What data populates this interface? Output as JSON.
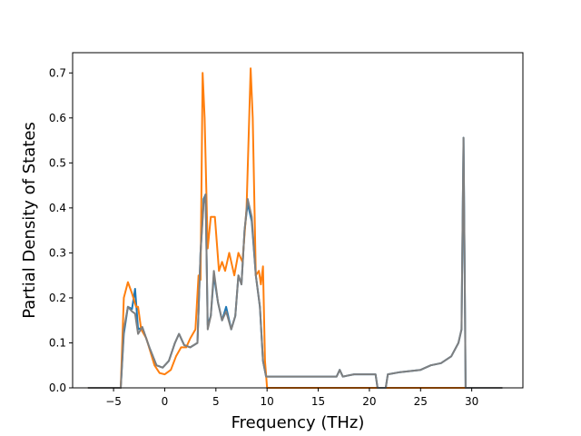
{
  "chart_data": {
    "type": "line",
    "title": "",
    "xlabel": "Frequency (THz)",
    "ylabel": "Partial Density of States",
    "xlim": [
      -9,
      35
    ],
    "ylim": [
      0,
      0.745
    ],
    "xticks": [
      -5,
      0,
      5,
      10,
      15,
      20,
      25,
      30
    ],
    "xtick_labels": [
      "−5",
      "0",
      "5",
      "10",
      "15",
      "20",
      "25",
      "30"
    ],
    "yticks": [
      0.0,
      0.1,
      0.2,
      0.3,
      0.4,
      0.5,
      0.6,
      0.7
    ],
    "ytick_labels": [
      "0.0",
      "0.1",
      "0.2",
      "0.3",
      "0.4",
      "0.5",
      "0.6",
      "0.7"
    ],
    "grid": false,
    "legend": false,
    "series": [
      {
        "color": "#1f77b4",
        "points": [
          [
            -7.5,
            0
          ],
          [
            -4.3,
            0
          ],
          [
            -4.0,
            0.12
          ],
          [
            -3.6,
            0.18
          ],
          [
            -3.2,
            0.175
          ],
          [
            -2.9,
            0.22
          ],
          [
            -2.6,
            0.13
          ],
          [
            -2.2,
            0.135
          ],
          [
            -1.5,
            0.09
          ],
          [
            -0.8,
            0.05
          ],
          [
            -0.2,
            0.045
          ],
          [
            0.4,
            0.06
          ],
          [
            1.0,
            0.1
          ],
          [
            1.4,
            0.12
          ],
          [
            1.9,
            0.095
          ],
          [
            2.5,
            0.09
          ],
          [
            3.2,
            0.1
          ],
          [
            3.5,
            0.3
          ],
          [
            3.8,
            0.42
          ],
          [
            4.0,
            0.43
          ],
          [
            4.2,
            0.14
          ],
          [
            4.5,
            0.16
          ],
          [
            4.8,
            0.25
          ],
          [
            5.2,
            0.19
          ],
          [
            5.6,
            0.15
          ],
          [
            6.0,
            0.18
          ],
          [
            6.5,
            0.13
          ],
          [
            6.9,
            0.16
          ],
          [
            7.2,
            0.25
          ],
          [
            7.5,
            0.23
          ],
          [
            7.8,
            0.35
          ],
          [
            8.1,
            0.41
          ],
          [
            8.5,
            0.37
          ],
          [
            8.9,
            0.25
          ],
          [
            9.3,
            0.18
          ],
          [
            9.6,
            0.06
          ],
          [
            9.9,
            0.025
          ],
          [
            16.8,
            0.025
          ],
          [
            17.1,
            0.04
          ],
          [
            17.4,
            0.025
          ],
          [
            18.5,
            0.03
          ],
          [
            20.6,
            0.03
          ],
          [
            20.8,
            0.0
          ],
          [
            21.6,
            0.0
          ],
          [
            21.8,
            0.03
          ],
          [
            23.0,
            0.035
          ],
          [
            25.0,
            0.04
          ],
          [
            26.0,
            0.05
          ],
          [
            27.0,
            0.055
          ],
          [
            28.0,
            0.07
          ],
          [
            28.7,
            0.1
          ],
          [
            29.0,
            0.13
          ],
          [
            29.1,
            0.35
          ],
          [
            29.2,
            0.556
          ],
          [
            29.3,
            0.3
          ],
          [
            29.4,
            0.0
          ],
          [
            33.0,
            0.0
          ]
        ]
      },
      {
        "color": "#ff7f0e",
        "points": [
          [
            -7.5,
            0
          ],
          [
            -4.3,
            0
          ],
          [
            -4.0,
            0.2
          ],
          [
            -3.6,
            0.235
          ],
          [
            -3.2,
            0.21
          ],
          [
            -2.8,
            0.18
          ],
          [
            -2.6,
            0.18
          ],
          [
            -2.3,
            0.13
          ],
          [
            -1.8,
            0.11
          ],
          [
            -1.0,
            0.05
          ],
          [
            -0.5,
            0.033
          ],
          [
            0,
            0.03
          ],
          [
            0.6,
            0.04
          ],
          [
            1.1,
            0.07
          ],
          [
            1.6,
            0.09
          ],
          [
            2.1,
            0.09
          ],
          [
            2.5,
            0.11
          ],
          [
            3.0,
            0.13
          ],
          [
            3.3,
            0.25
          ],
          [
            3.5,
            0.24
          ],
          [
            3.7,
            0.7
          ],
          [
            3.9,
            0.6
          ],
          [
            4.2,
            0.31
          ],
          [
            4.5,
            0.38
          ],
          [
            4.9,
            0.38
          ],
          [
            5.3,
            0.26
          ],
          [
            5.6,
            0.28
          ],
          [
            5.9,
            0.26
          ],
          [
            6.3,
            0.3
          ],
          [
            6.8,
            0.25
          ],
          [
            7.2,
            0.3
          ],
          [
            7.6,
            0.28
          ],
          [
            8.0,
            0.4
          ],
          [
            8.4,
            0.71
          ],
          [
            8.6,
            0.6
          ],
          [
            8.9,
            0.25
          ],
          [
            9.2,
            0.26
          ],
          [
            9.4,
            0.23
          ],
          [
            9.6,
            0.27
          ],
          [
            9.8,
            0.06
          ],
          [
            10.0,
            0.0
          ],
          [
            33.0,
            0.0
          ]
        ]
      },
      {
        "color": "#7f7f7f",
        "points": [
          [
            -7.5,
            0
          ],
          [
            -4.3,
            0
          ],
          [
            -4.0,
            0.13
          ],
          [
            -3.6,
            0.18
          ],
          [
            -3.2,
            0.17
          ],
          [
            -2.9,
            0.165
          ],
          [
            -2.6,
            0.12
          ],
          [
            -2.2,
            0.135
          ],
          [
            -1.5,
            0.09
          ],
          [
            -0.8,
            0.05
          ],
          [
            -0.2,
            0.045
          ],
          [
            0.4,
            0.06
          ],
          [
            1.0,
            0.1
          ],
          [
            1.4,
            0.12
          ],
          [
            1.9,
            0.095
          ],
          [
            2.5,
            0.09
          ],
          [
            3.2,
            0.1
          ],
          [
            3.5,
            0.3
          ],
          [
            3.8,
            0.41
          ],
          [
            4.0,
            0.43
          ],
          [
            4.2,
            0.13
          ],
          [
            4.5,
            0.16
          ],
          [
            4.8,
            0.26
          ],
          [
            5.2,
            0.19
          ],
          [
            5.6,
            0.15
          ],
          [
            6.0,
            0.17
          ],
          [
            6.5,
            0.13
          ],
          [
            6.9,
            0.16
          ],
          [
            7.2,
            0.25
          ],
          [
            7.5,
            0.23
          ],
          [
            7.8,
            0.35
          ],
          [
            8.1,
            0.42
          ],
          [
            8.5,
            0.38
          ],
          [
            8.9,
            0.25
          ],
          [
            9.3,
            0.18
          ],
          [
            9.6,
            0.06
          ],
          [
            9.9,
            0.025
          ],
          [
            16.8,
            0.025
          ],
          [
            17.1,
            0.04
          ],
          [
            17.4,
            0.025
          ],
          [
            18.5,
            0.03
          ],
          [
            20.6,
            0.03
          ],
          [
            20.8,
            0.0
          ],
          [
            21.6,
            0.0
          ],
          [
            21.8,
            0.03
          ],
          [
            23.0,
            0.035
          ],
          [
            25.0,
            0.04
          ],
          [
            26.0,
            0.05
          ],
          [
            27.0,
            0.055
          ],
          [
            28.0,
            0.07
          ],
          [
            28.7,
            0.1
          ],
          [
            29.0,
            0.13
          ],
          [
            29.1,
            0.35
          ],
          [
            29.2,
            0.556
          ],
          [
            29.3,
            0.3
          ],
          [
            29.4,
            0.0
          ],
          [
            33.0,
            0.0
          ]
        ]
      }
    ]
  }
}
